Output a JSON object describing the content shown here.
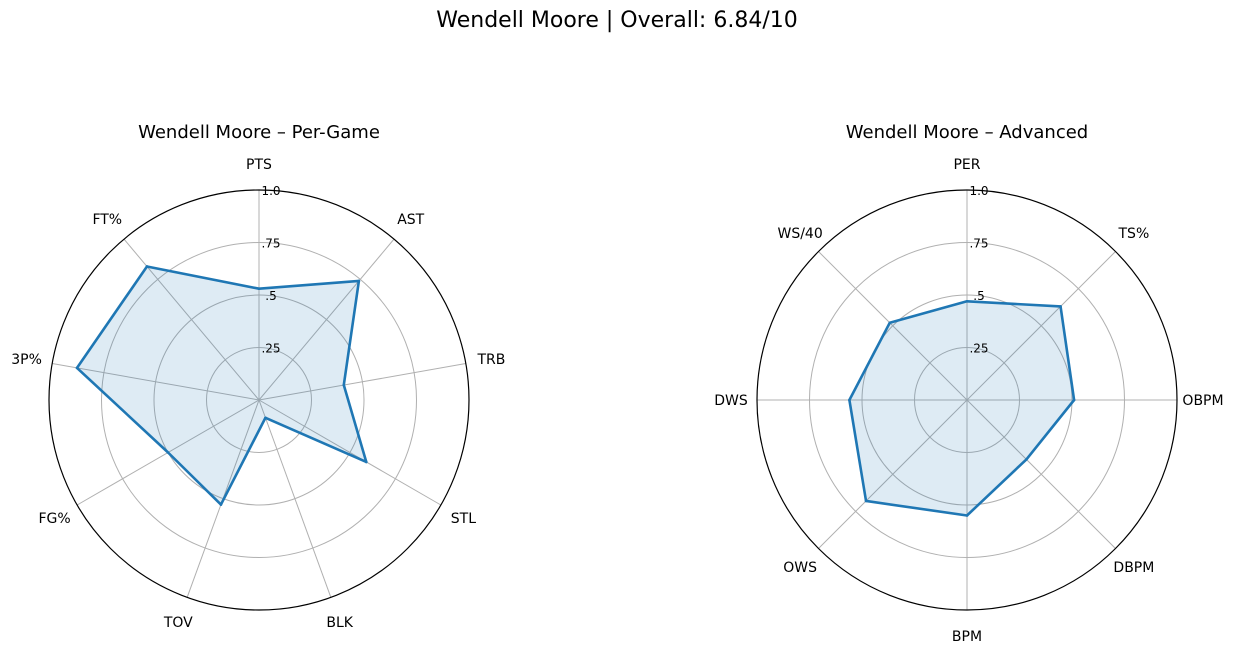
{
  "suptitle": "Wendell Moore | Overall: 6.84/10",
  "colors": {
    "line": "#1f77b4",
    "fill": "#1f77b4",
    "grid": "#b0b0b0",
    "frame": "#000000"
  },
  "chart_data": [
    {
      "type": "radar",
      "title": "Wendell Moore – Per-Game",
      "categories": [
        "PTS",
        "AST",
        "TRB",
        "STL",
        "BLK",
        "TOV",
        "FG%",
        "3P%",
        "FT%"
      ],
      "values": [
        0.53,
        0.74,
        0.41,
        0.59,
        0.09,
        0.53,
        0.5,
        0.88,
        0.83
      ],
      "rlim": [
        0,
        1
      ],
      "rticks": [
        0.25,
        0.5,
        0.75,
        1.0
      ],
      "rtick_labels": [
        ".25",
        ".5",
        ".75",
        "1.0"
      ],
      "grid": true
    },
    {
      "type": "radar",
      "title": "Wendell Moore – Advanced",
      "categories": [
        "PER",
        "TS%",
        "OBPM",
        "DBPM",
        "BPM",
        "OWS",
        "DWS",
        "WS/40"
      ],
      "values": [
        0.47,
        0.63,
        0.51,
        0.4,
        0.55,
        0.68,
        0.56,
        0.52
      ],
      "rlim": [
        0,
        1
      ],
      "rticks": [
        0.25,
        0.5,
        0.75,
        1.0
      ],
      "rtick_labels": [
        ".25",
        ".5",
        ".75",
        "1.0"
      ],
      "grid": true
    }
  ]
}
